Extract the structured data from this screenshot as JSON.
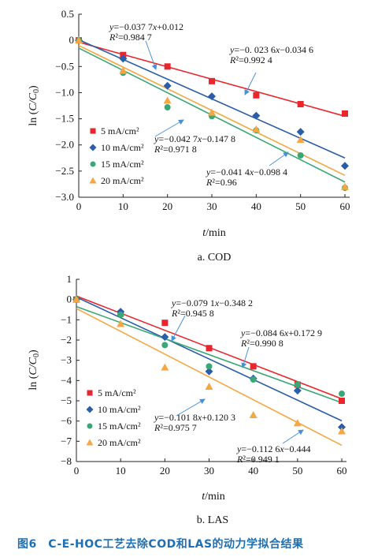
{
  "caption": "图6　C-E-HOC工艺去除COD和LAS的动力学拟合结果",
  "chart_data": [
    {
      "type": "scatter",
      "panel_label": "a. COD",
      "xlabel": "t/min",
      "ylabel": "ln (C/C0)",
      "xlim": [
        0,
        60
      ],
      "ylim": [
        -3.0,
        0.5
      ],
      "xticks": [
        0,
        10,
        20,
        30,
        40,
        50,
        60
      ],
      "yticks": [
        0.5,
        0,
        -0.5,
        -1.0,
        -1.5,
        -2.0,
        -2.5,
        -3.0
      ],
      "ytick_labels": [
        "0.5",
        "0",
        "−0.5",
        "−1.0",
        "−1.5",
        "−2.0",
        "−2.5",
        "−3.0"
      ],
      "x": [
        0,
        10,
        20,
        30,
        40,
        50,
        60
      ],
      "series": [
        {
          "name": "5 mA/cm²",
          "color": "#e8262c",
          "marker": "square",
          "values": [
            0,
            -0.28,
            -0.5,
            -0.78,
            -1.05,
            -1.22,
            -1.4
          ],
          "fit": {
            "slope": -0.0236,
            "intercept": -0.0346
          }
        },
        {
          "name": "10 mA/cm²",
          "color": "#2a5ea8",
          "marker": "diamond",
          "values": [
            0,
            -0.35,
            -0.87,
            -1.07,
            -1.44,
            -1.75,
            -2.4
          ],
          "fit": {
            "slope": -0.0377,
            "intercept": 0.012
          }
        },
        {
          "name": "15 mA/cm²",
          "color": "#3aa776",
          "marker": "circle",
          "values": [
            0,
            -0.62,
            -1.28,
            -1.45,
            -1.72,
            -2.2,
            -2.82
          ],
          "fit": {
            "slope": -0.0427,
            "intercept": -0.1478
          }
        },
        {
          "name": "20 mA/cm²",
          "color": "#f4a742",
          "marker": "triangle",
          "values": [
            0,
            -0.58,
            -1.15,
            -1.38,
            -1.7,
            -1.9,
            -2.8
          ],
          "fit": {
            "slope": -0.0414,
            "intercept": -0.0984
          }
        }
      ],
      "annotations": [
        {
          "line1": "y=−0.037 7x+0.012",
          "line2": "R²=0.984 7"
        },
        {
          "line1": "y=−0. 023 6x−0.034 6",
          "line2": "R²=0.992 4"
        },
        {
          "line1": "y=−0.042 7x−0.147 8",
          "line2": "R²=0.971 8"
        },
        {
          "line1": "y=−0.041 4x−0.098 4",
          "line2": "R²=0.96"
        }
      ],
      "legend": "lower-left"
    },
    {
      "type": "scatter",
      "panel_label": "b. LAS",
      "xlabel": "t/min",
      "ylabel": "ln (C/C0)",
      "xlim": [
        0,
        60
      ],
      "ylim": [
        -8,
        1
      ],
      "xticks": [
        0,
        10,
        20,
        30,
        40,
        50,
        60
      ],
      "yticks": [
        1,
        0,
        -1,
        -2,
        -3,
        -4,
        -5,
        -6,
        -7,
        -8
      ],
      "ytick_labels": [
        "1",
        "0",
        "−1",
        "−2",
        "−3",
        "−4",
        "−5",
        "−6",
        "−7",
        "−8"
      ],
      "x": [
        0,
        10,
        20,
        30,
        40,
        50,
        60
      ],
      "series": [
        {
          "name": "5 mA/cm²",
          "color": "#e8262c",
          "marker": "square",
          "values": [
            0,
            -0.7,
            -1.15,
            -2.4,
            -3.3,
            -4.2,
            -5.0
          ],
          "fit": {
            "slope": -0.0846,
            "intercept": 0.1729
          }
        },
        {
          "name": "10 mA/cm²",
          "color": "#2a5ea8",
          "marker": "diamond",
          "values": [
            0,
            -0.6,
            -1.85,
            -3.55,
            -3.9,
            -4.5,
            -6.3
          ],
          "fit": {
            "slope": -0.1018,
            "intercept": 0.1203
          }
        },
        {
          "name": "15 mA/cm²",
          "color": "#3aa776",
          "marker": "circle",
          "values": [
            0,
            -0.75,
            -2.25,
            -3.3,
            -3.95,
            -4.2,
            -4.65
          ],
          "fit": {
            "slope": -0.0791,
            "intercept": -0.3482
          }
        },
        {
          "name": "20 mA/cm²",
          "color": "#f4a742",
          "marker": "triangle",
          "values": [
            0,
            -1.2,
            -3.35,
            -4.3,
            -5.7,
            -6.1,
            -6.5
          ],
          "fit": {
            "slope": -0.1126,
            "intercept": -0.444
          }
        }
      ],
      "annotations": [
        {
          "line1": "y=−0.079 1x−0.348 2",
          "line2": "R²=0.945 8"
        },
        {
          "line1": "y=−0.084 6x+0.172 9",
          "line2": "R²=0.990 8"
        },
        {
          "line1": "y=−0.101 8x+0.120 3",
          "line2": "R²=0.975 7"
        },
        {
          "line1": "y=−0.112 6x−0.444",
          "line2": "R²=0.949 1"
        }
      ],
      "legend": "lower-left"
    }
  ]
}
